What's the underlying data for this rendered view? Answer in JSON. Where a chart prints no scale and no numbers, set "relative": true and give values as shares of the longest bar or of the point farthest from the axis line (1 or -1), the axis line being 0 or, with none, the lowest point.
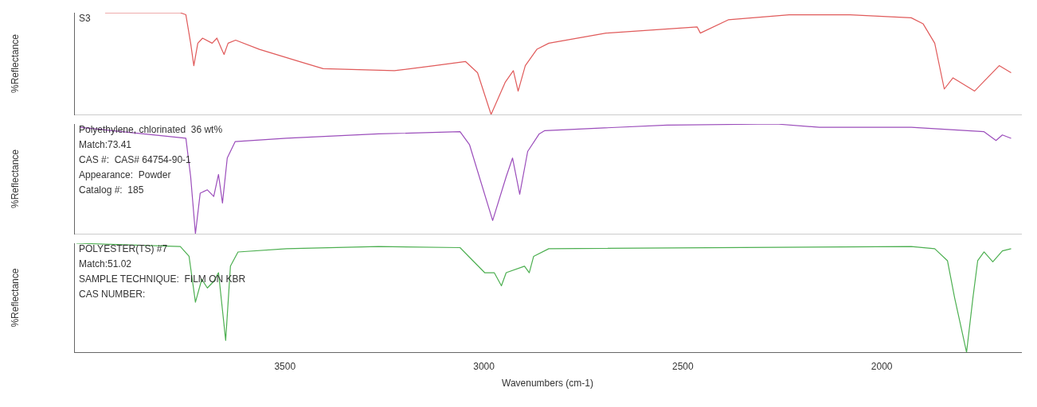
{
  "chart_data": [
    {
      "type": "line",
      "relative": true,
      "ylabel": "%Reflectance",
      "xlim": [
        4030,
        1650
      ],
      "xticks": [
        3500,
        3000,
        2500,
        2000
      ],
      "tick_labels": false,
      "series": [
        {
          "name": "S3",
          "color": "#e05a5a",
          "x": [
            3952,
            3763,
            3749,
            3737,
            3729,
            3719,
            3707,
            3683,
            3671,
            3659,
            3653,
            3643,
            3624,
            3564,
            3464,
            3404,
            3225,
            3125,
            3046,
            3016,
            2982,
            2946,
            2926,
            2914,
            2896,
            2867,
            2837,
            2693,
            2464,
            2456,
            2386,
            2233,
            2080,
            1926,
            1896,
            1867,
            1843,
            1821,
            1767,
            1705,
            1675
          ],
          "values": [
            1.0,
            1.0,
            0.98,
            0.7,
            0.48,
            0.7,
            0.75,
            0.7,
            0.75,
            0.64,
            0.59,
            0.7,
            0.73,
            0.64,
            0.52,
            0.45,
            0.43,
            0.48,
            0.52,
            0.41,
            0,
            0.32,
            0.43,
            0.23,
            0.48,
            0.64,
            0.7,
            0.8,
            0.86,
            0.8,
            0.93,
            0.98,
            0.98,
            0.95,
            0.89,
            0.7,
            0.25,
            0.36,
            0.23,
            0.48,
            0.41
          ]
        }
      ]
    },
    {
      "type": "line",
      "relative": true,
      "ylabel": "%Reflectance",
      "xlim": [
        4030,
        1650
      ],
      "xticks": [
        3500,
        3000,
        2500,
        2000
      ],
      "tick_labels": false,
      "annotations": [
        "Polyethylene, chlorinated  36 wt%",
        "Match:73.41",
        "CAS #:  CAS# 64754-90-1",
        "Appearance:  Powder",
        "Catalog #:  185"
      ],
      "series": [
        {
          "color": "#9b4dbb",
          "x": [
            4016,
            3749,
            3737,
            3725,
            3713,
            3695,
            3679,
            3667,
            3657,
            3645,
            3625,
            3496,
            3265,
            3060,
            3036,
            2978,
            2944,
            2928,
            2910,
            2890,
            2861,
            2847,
            2540,
            2265,
            2157,
            1926,
            1743,
            1713,
            1697,
            1675
          ],
          "values": [
            0.97,
            0.87,
            0.52,
            0,
            0.37,
            0.4,
            0.34,
            0.54,
            0.28,
            0.69,
            0.84,
            0.87,
            0.91,
            0.93,
            0.81,
            0.12,
            0.52,
            0.69,
            0.36,
            0.75,
            0.91,
            0.94,
            0.99,
            1.0,
            0.97,
            0.97,
            0.93,
            0.85,
            0.9,
            0.87
          ]
        }
      ]
    },
    {
      "type": "line",
      "relative": true,
      "ylabel": "%Reflectance",
      "xlabel": "Wavenumbers (cm-1)",
      "xlim": [
        4030,
        1650
      ],
      "xticks": [
        3500,
        3000,
        2500,
        2000
      ],
      "annotations": [
        "POLYESTER(TS) #7",
        "Match:51.02",
        "SAMPLE TECHNIQUE:  FILM ON KBR",
        "CAS NUMBER:"
      ],
      "series": [
        {
          "color": "#4caf50",
          "x": [
            4024,
            3763,
            3741,
            3725,
            3709,
            3695,
            3679,
            3667,
            3649,
            3637,
            3618,
            3496,
            3265,
            3060,
            2998,
            2974,
            2956,
            2944,
            2898,
            2886,
            2875,
            2837,
            1926,
            1867,
            1835,
            1817,
            1787,
            1771,
            1759,
            1743,
            1721,
            1697,
            1675
          ],
          "values": [
            1.0,
            0.97,
            0.88,
            0.46,
            0.67,
            0.59,
            0.65,
            0.73,
            0.11,
            0.79,
            0.92,
            0.95,
            0.97,
            0.96,
            0.73,
            0.73,
            0.61,
            0.73,
            0.79,
            0.73,
            0.88,
            0.95,
            0.97,
            0.95,
            0.84,
            0.5,
            0,
            0.5,
            0.84,
            0.92,
            0.83,
            0.93,
            0.95
          ]
        }
      ]
    }
  ]
}
